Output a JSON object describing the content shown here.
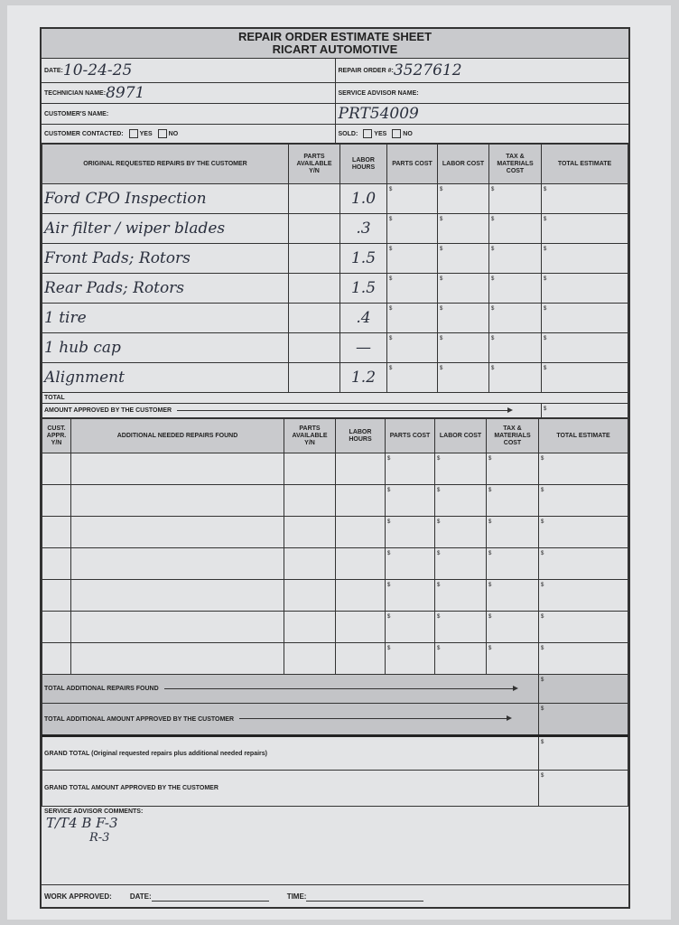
{
  "header": {
    "title": "REPAIR ORDER ESTIMATE SHEET",
    "company": "RICART AUTOMOTIVE"
  },
  "fields": {
    "date_label": "DATE:",
    "date_value": "10-24-25",
    "repair_order_label": "REPAIR ORDER #:",
    "repair_order_value": "3527612",
    "technician_label": "TECHNICIAN NAME:",
    "technician_value": "8971",
    "service_advisor_label": "SERVICE ADVISOR NAME:",
    "service_advisor_value": "",
    "customer_label": "CUSTOMER'S NAME:",
    "customer_value": "",
    "customer_code_value": "PRT54009",
    "contacted_label": "CUSTOMER CONTACTED:",
    "sold_label": "SOLD:",
    "yes": "YES",
    "no": "NO"
  },
  "original": {
    "headers": [
      "ORIGINAL REQUESTED REPAIRS BY THE CUSTOMER",
      "PARTS AVAILABLE Y/N",
      "LABOR HOURS",
      "PARTS COST",
      "LABOR COST",
      "TAX & MATERIALS COST",
      "TOTAL ESTIMATE"
    ],
    "rows": [
      {
        "repair": "Ford CPO Inspection",
        "parts_available": "",
        "labor_hours": "1.0"
      },
      {
        "repair": "Air filter / wiper blades",
        "parts_available": "",
        "labor_hours": ".3"
      },
      {
        "repair": "Front Pads; Rotors",
        "parts_available": "",
        "labor_hours": "1.5"
      },
      {
        "repair": "Rear Pads; Rotors",
        "parts_available": "",
        "labor_hours": "1.5"
      },
      {
        "repair": "1 tire",
        "parts_available": "",
        "labor_hours": ".4"
      },
      {
        "repair": "1 hub cap",
        "parts_available": "",
        "labor_hours": "—"
      },
      {
        "repair": "Alignment",
        "parts_available": "",
        "labor_hours": "1.2"
      }
    ],
    "currency": "$",
    "total_label": "TOTAL",
    "approved_label": "AMOUNT APPROVED BY THE CUSTOMER"
  },
  "additional": {
    "headers": [
      "CUST. APPR. Y/N",
      "ADDITIONAL NEEDED REPAIRS FOUND",
      "PARTS AVAILABLE Y/N",
      "LABOR HOURS",
      "PARTS COST",
      "LABOR COST",
      "TAX & MATERIALS COST",
      "TOTAL ESTIMATE"
    ],
    "row_count": 7,
    "total_label": "TOTAL ADDITIONAL REPAIRS FOUND",
    "approved_label": "TOTAL ADDITIONAL AMOUNT APPROVED BY THE CUSTOMER"
  },
  "grand": {
    "total_label": "GRAND TOTAL (Original requested repairs plus additional needed repairs)",
    "approved_label": "GRAND TOTAL AMOUNT APPROVED BY THE CUSTOMER"
  },
  "comments": {
    "label": "SERVICE ADVISOR COMMENTS:",
    "line1": "T/T4  B F-3",
    "line2": "R-3"
  },
  "footer": {
    "work_approved_label": "WORK APPROVED:",
    "date_label": "DATE:",
    "time_label": "TIME:"
  }
}
